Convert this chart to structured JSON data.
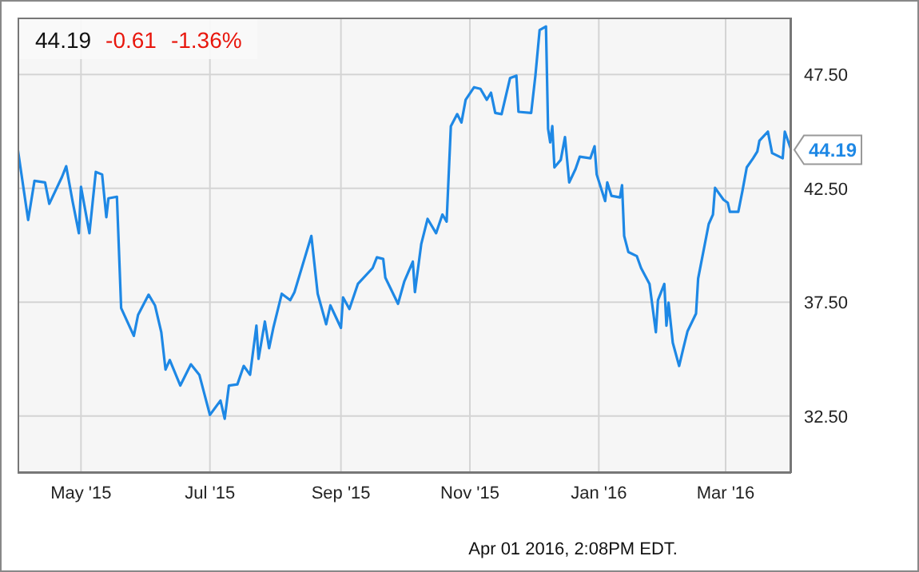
{
  "chart_data": {
    "type": "line",
    "title": "44.19",
    "annotations": [
      "-0.61",
      "-1.36%",
      "Apr 01 2016, 2:08PM EDT.",
      {
        "text": "44.19",
        "x": "2016-04-01",
        "y": 44.19
      }
    ],
    "x": [
      "2015-04-01",
      "2015-04-06",
      "2015-04-09",
      "2015-04-14",
      "2015-04-16",
      "2015-04-22",
      "2015-04-24",
      "2015-04-27",
      "2015-04-30",
      "2015-05-01",
      "2015-05-05",
      "2015-05-08",
      "2015-05-11",
      "2015-05-13",
      "2015-05-14",
      "2015-05-18",
      "2015-05-20",
      "2015-05-26",
      "2015-05-28",
      "2015-06-02",
      "2015-06-05",
      "2015-06-08",
      "2015-06-10",
      "2015-06-12",
      "2015-06-17",
      "2015-06-22",
      "2015-06-26",
      "2015-07-01",
      "2015-07-06",
      "2015-07-08",
      "2015-07-10",
      "2015-07-14",
      "2015-07-17",
      "2015-07-20",
      "2015-07-23",
      "2015-07-24",
      "2015-07-27",
      "2015-07-29",
      "2015-07-31",
      "2015-08-04",
      "2015-08-08",
      "2015-08-10",
      "2015-08-18",
      "2015-08-21",
      "2015-08-25",
      "2015-08-27",
      "2015-09-01",
      "2015-09-02",
      "2015-09-05",
      "2015-09-09",
      "2015-09-16",
      "2015-09-18",
      "2015-09-21",
      "2015-09-22",
      "2015-09-28",
      "2015-10-01",
      "2015-10-05",
      "2015-10-06",
      "2015-10-09",
      "2015-10-12",
      "2015-10-16",
      "2015-10-19",
      "2015-10-21",
      "2015-10-23",
      "2015-10-26",
      "2015-10-28",
      "2015-10-30",
      "2015-11-03",
      "2015-11-06",
      "2015-11-09",
      "2015-11-11",
      "2015-11-13",
      "2015-11-16",
      "2015-11-20",
      "2015-11-23",
      "2015-11-24",
      "2015-11-30",
      "2015-12-02",
      "2015-12-04",
      "2015-12-07",
      "2015-12-08",
      "2015-12-09",
      "2015-12-10",
      "2015-12-11",
      "2015-12-14",
      "2015-12-16",
      "2015-12-18",
      "2015-12-21",
      "2015-12-23",
      "2015-12-28",
      "2015-12-30",
      "2015-12-31",
      "2016-01-04",
      "2016-01-05",
      "2016-01-07",
      "2016-01-11",
      "2016-01-12",
      "2016-01-13",
      "2016-01-15",
      "2016-01-19",
      "2016-01-21",
      "2016-01-25",
      "2016-01-28",
      "2016-01-29",
      "2016-02-01",
      "2016-02-02",
      "2016-02-03",
      "2016-02-05",
      "2016-02-08",
      "2016-02-10",
      "2016-02-12",
      "2016-02-16",
      "2016-02-17",
      "2016-02-22",
      "2016-02-24",
      "2016-02-25",
      "2016-02-29",
      "2016-03-02",
      "2016-03-03",
      "2016-03-07",
      "2016-03-09",
      "2016-03-11",
      "2016-03-14",
      "2016-03-16",
      "2016-03-17",
      "2016-03-21",
      "2016-03-23",
      "2016-03-28",
      "2016-03-29",
      "2016-04-01"
    ],
    "series": [
      {
        "color": "#1e88e5",
        "values": [
          44.28,
          41.11,
          42.83,
          42.76,
          41.82,
          43.0,
          43.47,
          41.94,
          40.53,
          42.57,
          40.53,
          43.22,
          43.11,
          41.23,
          42.06,
          42.13,
          37.24,
          36.02,
          36.94,
          37.83,
          37.36,
          36.18,
          34.54,
          34.96,
          33.84,
          34.77,
          34.31,
          32.55,
          33.18,
          32.38,
          33.84,
          33.89,
          34.7,
          34.31,
          36.47,
          35.01,
          36.65,
          35.48,
          36.37,
          37.87,
          37.59,
          37.94,
          40.41,
          37.87,
          36.53,
          37.36,
          36.37,
          37.71,
          37.2,
          38.3,
          39.0,
          39.47,
          39.4,
          38.58,
          37.43,
          38.42,
          39.28,
          37.94,
          40.06,
          41.16,
          40.53,
          41.35,
          41.04,
          45.23,
          45.76,
          45.39,
          46.39,
          46.94,
          46.87,
          46.39,
          46.7,
          45.81,
          45.76,
          47.34,
          47.45,
          45.86,
          45.81,
          47.45,
          49.45,
          49.61,
          45.11,
          44.52,
          45.23,
          43.42,
          43.75,
          44.75,
          42.76,
          43.35,
          43.89,
          43.82,
          44.35,
          43.11,
          41.94,
          42.76,
          42.17,
          42.1,
          42.64,
          40.41,
          39.7,
          39.52,
          39.0,
          38.3,
          36.18,
          37.59,
          38.3,
          36.47,
          37.48,
          35.72,
          34.7,
          35.48,
          36.23,
          37.0,
          38.54,
          40.93,
          41.35,
          42.52,
          42.0,
          41.87,
          41.47,
          41.47,
          42.41,
          43.42,
          43.82,
          44.12,
          44.59,
          44.99,
          44.05,
          43.82,
          44.99,
          44.19
        ]
      }
    ],
    "xlim": [
      "2015-04-01",
      "2016-04-01"
    ],
    "xticks": [
      {
        "value": "2015-05-01",
        "label": "May '15"
      },
      {
        "value": "2015-07-01",
        "label": "Jul '15"
      },
      {
        "value": "2015-09-01",
        "label": "Sep '15"
      },
      {
        "value": "2015-11-01",
        "label": "Nov '15"
      },
      {
        "value": "2016-01-01",
        "label": "Jan '16"
      },
      {
        "value": "2016-03-01",
        "label": "Mar '16"
      }
    ],
    "ylim": [
      30,
      50
    ],
    "yticks": [
      {
        "value": 32.5,
        "label": "32.50"
      },
      {
        "value": 37.5,
        "label": "37.50"
      },
      {
        "value": 42.5,
        "label": "42.50"
      },
      {
        "value": 47.5,
        "label": "47.50"
      }
    ],
    "grid": true,
    "marker": "none",
    "line_style": "solid"
  }
}
